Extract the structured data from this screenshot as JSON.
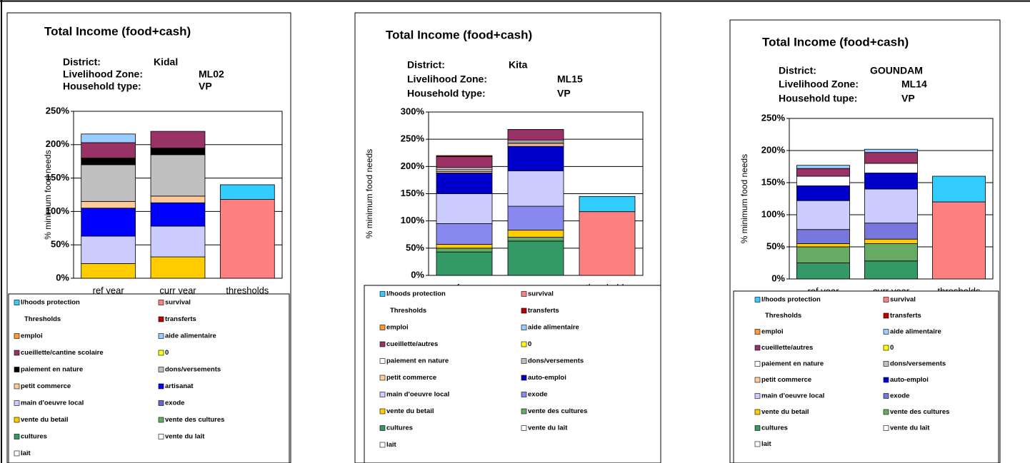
{
  "chart_data": [
    {
      "type": "bar",
      "stacked": true,
      "title": "Total Income (food+cash)",
      "info": [
        {
          "label": "District:",
          "value": "Kidal"
        },
        {
          "label": "Livelihood Zone:",
          "value": "ML02"
        },
        {
          "label": "Household type:",
          "value": "VP"
        }
      ],
      "ylabel": "% minimum food needs",
      "categories": [
        "ref year",
        "curr year",
        "thresholds"
      ],
      "ylim": [
        0,
        250
      ],
      "yticks": [
        {
          "value": 0,
          "label": "0%"
        },
        {
          "value": 50,
          "label": "50%"
        },
        {
          "value": 100,
          "label": "100%"
        },
        {
          "value": 150,
          "label": "150%"
        },
        {
          "value": 200,
          "label": "200%"
        },
        {
          "value": 250,
          "label": "250%"
        }
      ],
      "grid": true,
      "series": [
        {
          "name": "l/hoods protection",
          "color": "#33ccff",
          "values": [
            0,
            0,
            22
          ]
        },
        {
          "name": "survival",
          "color": "#ff8080",
          "values": [
            0,
            0,
            118
          ]
        },
        {
          "name": "Thresholds",
          "values": [
            0,
            0,
            0
          ]
        },
        {
          "name": "transferts",
          "color": "#c00000",
          "values": [
            0,
            0,
            0
          ]
        },
        {
          "name": "emploi",
          "color": "#ff9933",
          "values": [
            0,
            0,
            0
          ]
        },
        {
          "name": "aide alimentaire",
          "color": "#99ccff",
          "values": [
            13,
            0,
            0
          ]
        },
        {
          "name": "cueillette/cantine scolaire",
          "color": "#993366",
          "values": [
            23,
            25,
            0
          ]
        },
        {
          "name": "0",
          "color": "#ffff00",
          "values": [
            0,
            0,
            0
          ]
        },
        {
          "name": "paiement en nature",
          "color": "#000000",
          "values": [
            10,
            10,
            0
          ]
        },
        {
          "name": "dons/versements",
          "color": "#c0c0c0",
          "values": [
            55,
            62,
            0
          ]
        },
        {
          "name": "petit commerce",
          "color": "#ffcc99",
          "values": [
            10,
            10,
            0
          ]
        },
        {
          "name": "artisanat",
          "color": "#0000ff",
          "values": [
            42,
            35,
            0
          ]
        },
        {
          "name": "main d'oeuvre local",
          "color": "#ccccff",
          "values": [
            41,
            46,
            0
          ]
        },
        {
          "name": "exode",
          "color": "#6666cc",
          "values": [
            0,
            0,
            0
          ]
        },
        {
          "name": "vente du betail",
          "color": "#ffcc00",
          "values": [
            22,
            32,
            0
          ]
        },
        {
          "name": "vente des cultures",
          "color": "#66aa66",
          "values": [
            0,
            0,
            0
          ]
        },
        {
          "name": "cultures",
          "color": "#339966",
          "values": [
            0,
            0,
            0
          ]
        },
        {
          "name": "vente du lait",
          "color": "#ffffff",
          "values": [
            0,
            0,
            0
          ]
        },
        {
          "name": "lait",
          "color": "#ffffff",
          "values": [
            0,
            0,
            0
          ]
        }
      ]
    },
    {
      "type": "bar",
      "stacked": true,
      "title": "Total Income (food+cash)",
      "info": [
        {
          "label": "District:",
          "value": "Kita"
        },
        {
          "label": "Livelihood Zone:",
          "value": "ML15"
        },
        {
          "label": "Household type:",
          "value": "VP"
        }
      ],
      "ylabel": "% minimum food needs",
      "categories": [
        "ref year",
        "curr year",
        "thresholds"
      ],
      "ylim": [
        0,
        300
      ],
      "yticks": [
        {
          "value": 0,
          "label": "0%"
        },
        {
          "value": 50,
          "label": "50%"
        },
        {
          "value": 100,
          "label": "100%"
        },
        {
          "value": 150,
          "label": "150%"
        },
        {
          "value": 200,
          "label": "200%"
        },
        {
          "value": 250,
          "label": "250%"
        },
        {
          "value": 300,
          "label": "300%"
        }
      ],
      "grid": true,
      "series": [
        {
          "name": "l/hoods protection",
          "color": "#33ccff",
          "values": [
            0,
            0,
            28
          ]
        },
        {
          "name": "survival",
          "color": "#ff8080",
          "values": [
            0,
            0,
            117
          ]
        },
        {
          "name": "Thresholds",
          "values": [
            0,
            0,
            0
          ]
        },
        {
          "name": "transferts",
          "color": "#c00000",
          "values": [
            2,
            0,
            0
          ]
        },
        {
          "name": "emploi",
          "color": "#ff9933",
          "values": [
            0,
            0,
            0
          ]
        },
        {
          "name": "aide alimentaire",
          "color": "#99ccff",
          "values": [
            0,
            0,
            0
          ]
        },
        {
          "name": "cueillette/autres",
          "color": "#993366",
          "values": [
            20,
            20,
            0
          ]
        },
        {
          "name": "0",
          "color": "#ffff00",
          "values": [
            0,
            0,
            0
          ]
        },
        {
          "name": "paiement en nature",
          "color": "#ffffff",
          "values": [
            3,
            3,
            0
          ]
        },
        {
          "name": "dons/versements",
          "color": "#c0c0c0",
          "values": [
            4,
            3,
            0
          ]
        },
        {
          "name": "petit commerce",
          "color": "#ffcc99",
          "values": [
            3,
            5,
            0
          ]
        },
        {
          "name": "auto-emploi",
          "color": "#0000cc",
          "values": [
            38,
            45,
            0
          ]
        },
        {
          "name": "main d'oeuvre local",
          "color": "#ccccff",
          "values": [
            55,
            65,
            0
          ]
        },
        {
          "name": "exode",
          "color": "#8888ee",
          "values": [
            38,
            44,
            0
          ]
        },
        {
          "name": "vente du betail",
          "color": "#ffcc00",
          "values": [
            7,
            13,
            0
          ]
        },
        {
          "name": "vente des cultures",
          "color": "#66aa66",
          "values": [
            7,
            7,
            0
          ]
        },
        {
          "name": "cultures",
          "color": "#339966",
          "values": [
            43,
            63,
            0
          ]
        },
        {
          "name": "vente du lait",
          "color": "#ffffff",
          "values": [
            0,
            0,
            0
          ]
        },
        {
          "name": "lait",
          "color": "#ffffff",
          "values": [
            0,
            0,
            0
          ]
        }
      ]
    },
    {
      "type": "bar",
      "stacked": true,
      "title": "Total Income (food+cash)",
      "info": [
        {
          "label": "District:",
          "value": "GOUNDAM"
        },
        {
          "label": "Livelihood Zone:",
          "value": "ML14"
        },
        {
          "label": "Household tupe:",
          "value": "VP"
        }
      ],
      "ylabel": "% minimum food needs",
      "categories": [
        "ref year",
        "curr year",
        "thresholds"
      ],
      "ylim": [
        0,
        250
      ],
      "yticks": [
        {
          "value": 0,
          "label": "0%"
        },
        {
          "value": 50,
          "label": "50%"
        },
        {
          "value": 100,
          "label": "100%"
        },
        {
          "value": 150,
          "label": "150%"
        },
        {
          "value": 200,
          "label": "200%"
        },
        {
          "value": 250,
          "label": "250%"
        }
      ],
      "grid": true,
      "series": [
        {
          "name": "l/hoods protection",
          "color": "#33ccff",
          "values": [
            0,
            0,
            40
          ]
        },
        {
          "name": "survival",
          "color": "#ff8080",
          "values": [
            0,
            0,
            120
          ]
        },
        {
          "name": "Thresholds",
          "values": [
            0,
            0,
            0
          ]
        },
        {
          "name": "transferts",
          "color": "#c00000",
          "values": [
            0,
            0,
            0
          ]
        },
        {
          "name": "emploi",
          "color": "#ff9933",
          "values": [
            0,
            0,
            0
          ]
        },
        {
          "name": "aide alimentaire",
          "color": "#99ccff",
          "values": [
            5,
            5,
            0
          ]
        },
        {
          "name": "cueillette/autres",
          "color": "#993366",
          "values": [
            12,
            17,
            0
          ]
        },
        {
          "name": "0",
          "color": "#ffff00",
          "values": [
            0,
            0,
            0
          ]
        },
        {
          "name": "paiement en nature",
          "color": "#ffffff",
          "values": [
            15,
            15,
            0
          ]
        },
        {
          "name": "dons/versements",
          "color": "#c0c0c0",
          "values": [
            0,
            0,
            0
          ]
        },
        {
          "name": "petit commerce",
          "color": "#ffcc99",
          "values": [
            0,
            0,
            0
          ]
        },
        {
          "name": "auto-emploi",
          "color": "#0000cc",
          "values": [
            23,
            25,
            0
          ]
        },
        {
          "name": "main d'oeuvre local",
          "color": "#ccccff",
          "values": [
            45,
            53,
            0
          ]
        },
        {
          "name": "exode",
          "color": "#7777dd",
          "values": [
            22,
            25,
            0
          ]
        },
        {
          "name": "vente du betail",
          "color": "#ffcc00",
          "values": [
            5,
            7,
            0
          ]
        },
        {
          "name": "vente des cultures",
          "color": "#66aa66",
          "values": [
            25,
            27,
            0
          ]
        },
        {
          "name": "cultures",
          "color": "#339966",
          "values": [
            25,
            28,
            0
          ]
        },
        {
          "name": "vente du lait",
          "color": "#ffffff",
          "values": [
            0,
            0,
            0
          ]
        },
        {
          "name": "lait",
          "color": "#ffffff",
          "values": [
            0,
            0,
            0
          ]
        }
      ]
    }
  ]
}
